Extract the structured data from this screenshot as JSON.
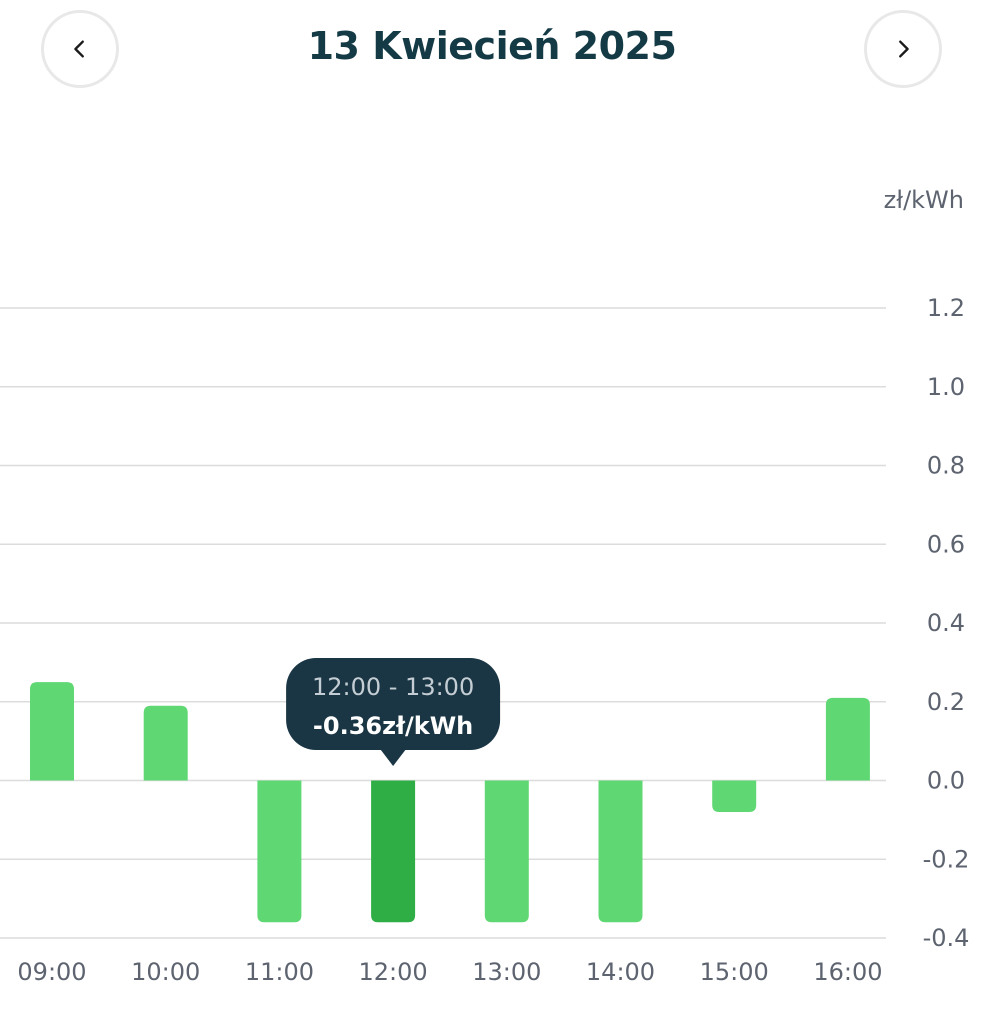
{
  "header": {
    "date_title": "13 Kwiecień 2025",
    "prev_icon": "chevron-left-icon",
    "next_icon": "chevron-right-icon"
  },
  "chart_data": {
    "type": "bar",
    "categories": [
      "09:00",
      "10:00",
      "11:00",
      "12:00",
      "13:00",
      "14:00",
      "15:00",
      "16:00"
    ],
    "values": [
      0.25,
      0.19,
      -0.36,
      -0.36,
      -0.36,
      -0.36,
      -0.08,
      0.21
    ],
    "ylabel": "zł/kWh",
    "ylim": [
      -0.4,
      1.2
    ],
    "yticks": [
      "1.2",
      "1.0",
      "0.8",
      "0.6",
      "0.4",
      "0.2",
      "0.0",
      "-0.2",
      "-0.4"
    ],
    "ytick_values": [
      1.2,
      1.0,
      0.8,
      0.6,
      0.4,
      0.2,
      0.0,
      -0.2,
      -0.4
    ],
    "grid": true,
    "selected_index": 3,
    "tooltip": {
      "range": "12:00 - 13:00",
      "value": "-0.36zł/kWh"
    },
    "colors": {
      "bar": "#5fd873",
      "bar_selected": "#2fae45",
      "grid": "#dcdcdc",
      "tooltip_bg": "#1a3644",
      "tooltip_range_text": "#c4cdd3",
      "tooltip_value_text": "#ffffff",
      "axis_text": "#5d6470"
    }
  }
}
